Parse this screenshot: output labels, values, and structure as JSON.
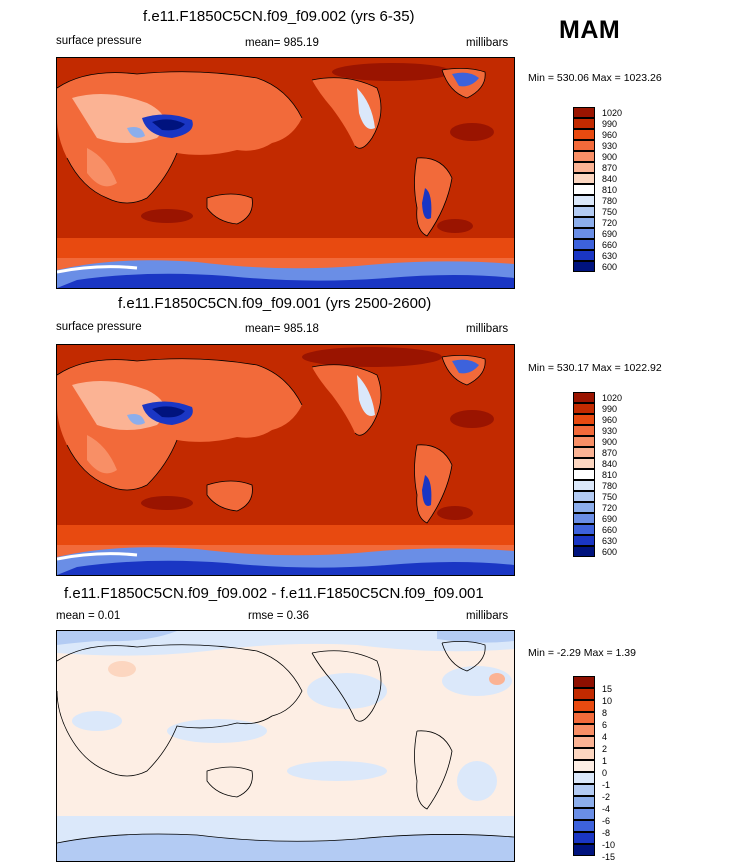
{
  "season": "MAM",
  "panels": [
    {
      "title": "f.e11.F1850C5CN.f09_f09.002 (yrs 6-35)",
      "left_label": "surface pressure",
      "center_label": "mean= 985.19",
      "right_label": "millibars",
      "minmax": "Min = 530.06 Max = 1023.26",
      "levels": [
        "1020",
        "990",
        "960",
        "930",
        "900",
        "870",
        "840",
        "810",
        "780",
        "750",
        "720",
        "690",
        "660",
        "630",
        "600"
      ],
      "colors": [
        "#9a1400",
        "#c22a00",
        "#e84a10",
        "#f26a3a",
        "#f88f66",
        "#fbb394",
        "#fcd6c0",
        "#ffffff",
        "#dbe8fa",
        "#b3cbf3",
        "#8caeec",
        "#6a8ee6",
        "#3d62dc",
        "#1a36c4",
        "#00137e"
      ]
    },
    {
      "title": "f.e11.F1850C5CN.f09_f09.001 (yrs 2500-2600)",
      "left_label": "surface pressure",
      "center_label": "mean= 985.18",
      "right_label": "millibars",
      "minmax": "Min = 530.17 Max = 1022.92",
      "levels": [
        "1020",
        "990",
        "960",
        "930",
        "900",
        "870",
        "840",
        "810",
        "780",
        "750",
        "720",
        "690",
        "660",
        "630",
        "600"
      ],
      "colors": [
        "#9a1400",
        "#c22a00",
        "#e84a10",
        "#f26a3a",
        "#f88f66",
        "#fbb394",
        "#fcd6c0",
        "#ffffff",
        "#dbe8fa",
        "#b3cbf3",
        "#8caeec",
        "#6a8ee6",
        "#3d62dc",
        "#1a36c4",
        "#00137e"
      ]
    },
    {
      "title": "f.e11.F1850C5CN.f09_f09.002 - f.e11.F1850C5CN.f09_f09.001",
      "left_label": "mean =   0.01",
      "center_label": "rmse =   0.36",
      "right_label": "millibars",
      "minmax": "Min =  -2.29 Max =   1.39",
      "levels": [
        "15",
        "10",
        "8",
        "6",
        "4",
        "2",
        "1",
        "0",
        "-1",
        "-2",
        "-4",
        "-6",
        "-8",
        "-10",
        "-15"
      ],
      "colors": [
        "#8e0f00",
        "#c22a00",
        "#e84a10",
        "#f26a3a",
        "#f88f66",
        "#fbb394",
        "#fcd6c0",
        "#fdeee4",
        "#dbe8fa",
        "#b3cbf3",
        "#8caeec",
        "#6a8ee6",
        "#3d62dc",
        "#1a36c4",
        "#00137e"
      ]
    }
  ]
}
